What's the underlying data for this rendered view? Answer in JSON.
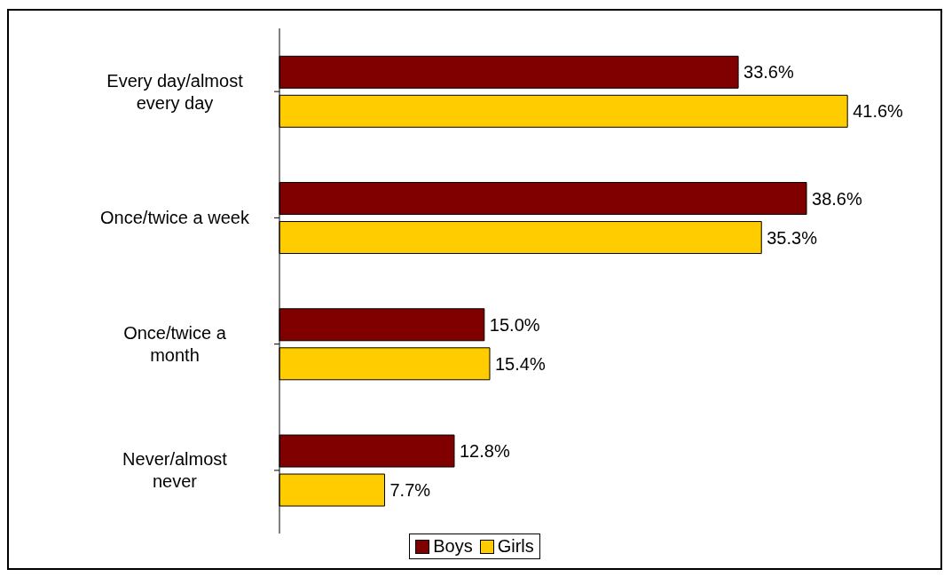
{
  "chart_data": {
    "type": "bar",
    "orientation": "horizontal",
    "categories": [
      "Every day/almost every day",
      "Once/twice a week",
      "Once/twice a month",
      "Never/almost never"
    ],
    "series": [
      {
        "name": "Boys",
        "color": "#800000",
        "values": [
          33.6,
          38.6,
          15.0,
          12.8
        ],
        "value_labels": [
          "33.6%",
          "38.6%",
          "15.0%",
          "12.8%"
        ]
      },
      {
        "name": "Girls",
        "color": "#ffcc00",
        "values": [
          41.6,
          35.3,
          15.4,
          7.7
        ],
        "value_labels": [
          "41.6%",
          "35.3%",
          "15.4%",
          "7.7%"
        ]
      }
    ],
    "legend": "bottom",
    "grid": false
  }
}
